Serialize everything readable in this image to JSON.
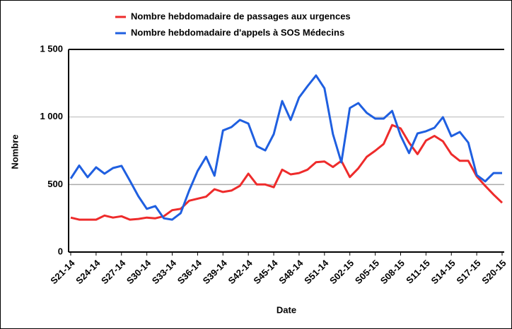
{
  "chart_data": {
    "type": "line",
    "x_label": "Date",
    "y_label": "Nombre",
    "legend": "top",
    "grid": true,
    "categories": [
      "S21-14",
      null,
      null,
      "S24-14",
      null,
      null,
      "S27-14",
      null,
      null,
      "S30-14",
      null,
      null,
      "S33-14",
      null,
      null,
      "S36-14",
      null,
      null,
      "S39-14",
      null,
      null,
      "S42-14",
      null,
      null,
      "S45-14",
      null,
      null,
      "S48-14",
      null,
      null,
      "S51-14",
      null,
      null,
      "S02-15",
      null,
      null,
      "S05-15",
      null,
      null,
      "S08-15",
      null,
      null,
      "S11-15",
      null,
      null,
      "S14-15",
      null,
      null,
      "S17-15",
      null,
      null,
      "S20-15"
    ],
    "series": [
      {
        "name": "Nombre hebdomadaire de passages aux urgences",
        "color": "#ee2b2b",
        "values": [
          255,
          240,
          240,
          240,
          270,
          255,
          265,
          240,
          245,
          255,
          250,
          265,
          310,
          320,
          380,
          395,
          410,
          465,
          445,
          455,
          490,
          580,
          500,
          500,
          480,
          610,
          575,
          585,
          610,
          665,
          670,
          630,
          675,
          555,
          620,
          705,
          750,
          800,
          940,
          915,
          810,
          725,
          825,
          860,
          820,
          725,
          675,
          675,
          560,
          490,
          425,
          365
        ]
      },
      {
        "name": "Nombre hebdomadaire d'appels à SOS Médecins",
        "color": "#1f5fe0",
        "values": [
          544,
          640,
          554,
          627,
          580,
          622,
          638,
          528,
          413,
          320,
          340,
          250,
          240,
          288,
          455,
          600,
          705,
          565,
          900,
          925,
          978,
          951,
          784,
          752,
          873,
          1118,
          978,
          1144,
          1228,
          1307,
          1212,
          873,
          664,
          1066,
          1103,
          1030,
          988,
          988,
          1045,
          862,
          732,
          878,
          894,
          920,
          998,
          857,
          889,
          810,
          570,
          523,
          585,
          585
        ]
      }
    ],
    "ylim": [
      0,
      1500
    ],
    "yticks": [
      0,
      500,
      {
        "value": 1000,
        "label": "1 000"
      },
      {
        "value": 1500,
        "label": "1 500"
      }
    ]
  }
}
